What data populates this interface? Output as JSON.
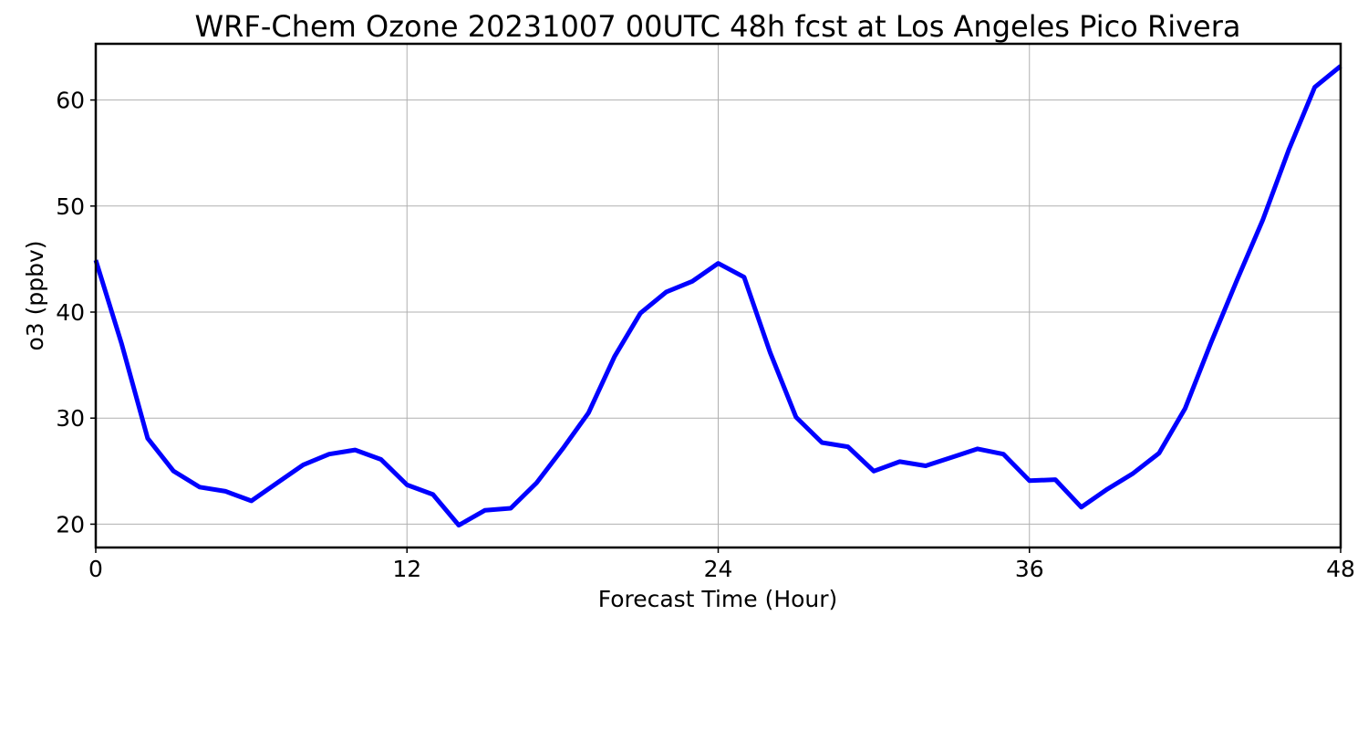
{
  "chart_data": {
    "type": "line",
    "title": "WRF-Chem Ozone  20231007 00UTC 48h fcst at Los Angeles Pico Rivera",
    "xlabel": "Forecast Time (Hour)",
    "ylabel": "o3  (ppbv)",
    "xlim": [
      0,
      48
    ],
    "ylim": [
      17.8,
      65.3
    ],
    "xticks": [
      0,
      12,
      24,
      36,
      48
    ],
    "yticks": [
      20,
      30,
      40,
      50,
      60
    ],
    "grid": true,
    "series_color": "#0000ff",
    "x": [
      0,
      1,
      2,
      3,
      4,
      5,
      6,
      7,
      8,
      9,
      10,
      11,
      12,
      13,
      14,
      15,
      16,
      17,
      18,
      19,
      20,
      21,
      22,
      23,
      24,
      25,
      26,
      27,
      28,
      29,
      30,
      31,
      32,
      33,
      34,
      35,
      36,
      37,
      38,
      39,
      40,
      41,
      42,
      43,
      44,
      45,
      46,
      47,
      48
    ],
    "series": [
      {
        "values": [
          44.9,
          37.0,
          28.1,
          25.0,
          23.5,
          23.1,
          22.2,
          23.9,
          25.6,
          26.6,
          27.0,
          26.1,
          23.7,
          22.8,
          19.9,
          21.3,
          21.5,
          23.9,
          27.1,
          30.5,
          35.8,
          39.9,
          41.9,
          42.9,
          44.6,
          43.3,
          36.2,
          30.1,
          27.7,
          27.3,
          25.0,
          25.9,
          25.5,
          26.3,
          27.1,
          26.6,
          24.1,
          24.2,
          21.6,
          23.3,
          24.8,
          26.7,
          30.9,
          37.1,
          43.0,
          48.7,
          55.3,
          61.2,
          63.2
        ]
      }
    ]
  }
}
